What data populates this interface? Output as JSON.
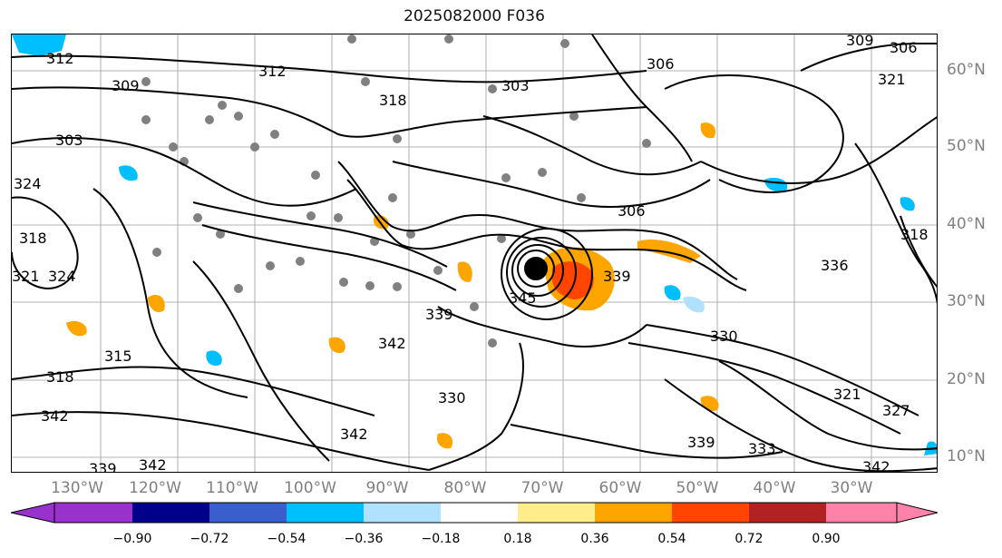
{
  "title": "2025082000 F036",
  "lon_labels": [
    "130°W",
    "120°W",
    "110°W",
    "100°W",
    "90°W",
    "80°W",
    "70°W",
    "60°W",
    "50°W",
    "40°W",
    "30°W"
  ],
  "lat_labels": [
    "60°N",
    "50°N",
    "40°N",
    "30°N",
    "20°N",
    "10°N"
  ],
  "colorbar": {
    "ticks": [
      "−0.90",
      "−0.72",
      "−0.54",
      "−0.36",
      "−0.18",
      "0.18",
      "0.36",
      "0.54",
      "0.72",
      "0.90"
    ],
    "colors": [
      "#9932cc",
      "#00008b",
      "#3a5fcd",
      "#00bfff",
      "#b0e2ff",
      "#ffffff",
      "#ffec8b",
      "#ffa500",
      "#ff4500",
      "#b22222",
      "#ff82ab"
    ],
    "extend": "both"
  },
  "contour_labels": [
    {
      "text": "312"
    },
    {
      "text": "309"
    },
    {
      "text": "303"
    },
    {
      "text": "312"
    },
    {
      "text": "318"
    },
    {
      "text": "303"
    },
    {
      "text": "306"
    },
    {
      "text": "309"
    },
    {
      "text": "306"
    },
    {
      "text": "321"
    },
    {
      "text": "324"
    },
    {
      "text": "318"
    },
    {
      "text": "324"
    },
    {
      "text": "321"
    },
    {
      "text": "315"
    },
    {
      "text": "318"
    },
    {
      "text": "342"
    },
    {
      "text": "339"
    },
    {
      "text": "342"
    },
    {
      "text": "339"
    },
    {
      "text": "342"
    },
    {
      "text": "345"
    },
    {
      "text": "339"
    },
    {
      "text": "336"
    },
    {
      "text": "318"
    },
    {
      "text": "330"
    },
    {
      "text": "321"
    },
    {
      "text": "327"
    },
    {
      "text": "339"
    },
    {
      "text": "333"
    },
    {
      "text": "342"
    },
    {
      "text": "342"
    },
    {
      "text": "330"
    },
    {
      "text": "306"
    }
  ]
}
